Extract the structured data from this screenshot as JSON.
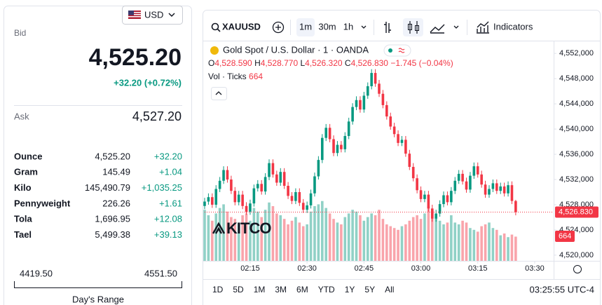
{
  "panel": {
    "currency": "USD",
    "bid_label": "Bid",
    "bid": "4,525.20",
    "change": "+32.20 (+0.72%)",
    "ask_label": "Ask",
    "ask": "4,527.20",
    "rows": [
      [
        "Ounce",
        "4,525.20",
        "+32.20"
      ],
      [
        "Gram",
        "145.49",
        "+1.04"
      ],
      [
        "Kilo",
        "145,490.79",
        "+1,035.25"
      ],
      [
        "Pennyweight",
        "226.26",
        "+1.61"
      ],
      [
        "Tola",
        "1,696.95",
        "+12.08"
      ],
      [
        "Tael",
        "5,499.38",
        "+39.13"
      ]
    ],
    "range_low": "4419.50",
    "range_high": "4551.50",
    "range_label": "Day's Range"
  },
  "toolbar": {
    "symbol": "XAUUSD",
    "intervals": [
      "1m",
      "30m",
      "1h"
    ],
    "indicators": "Indicators"
  },
  "footer": {
    "ranges": [
      "1D",
      "5D",
      "1M",
      "3M",
      "6M",
      "YTD",
      "1Y",
      "5Y",
      "All"
    ],
    "clock": "03:25:55 UTC-4"
  },
  "chart_data": {
    "type": "candlestick",
    "title": "Gold Spot / U.S. Dollar · 1 · OANDA",
    "ohlc_letters": [
      "O",
      "H",
      "L",
      "C"
    ],
    "ohlc_values": [
      "4,528.590",
      "4,528.770",
      "4,526.320",
      "4,526.830"
    ],
    "change": "−1.745 (−0.04%)",
    "volume_title": "Vol · Ticks",
    "volume_label": "664",
    "price_label": "4,526.830",
    "watermark": "KITCO",
    "up_color": "#089981",
    "down_color": "#f23645",
    "x": [
      "02:03",
      "02:04",
      "02:05",
      "02:06",
      "02:07",
      "02:08",
      "02:09",
      "02:10",
      "02:11",
      "02:12",
      "02:13",
      "02:14",
      "02:15",
      "02:16",
      "02:17",
      "02:18",
      "02:19",
      "02:20",
      "02:21",
      "02:22",
      "02:23",
      "02:24",
      "02:25",
      "02:26",
      "02:27",
      "02:28",
      "02:29",
      "02:30",
      "02:31",
      "02:32",
      "02:33",
      "02:34",
      "02:35",
      "02:36",
      "02:37",
      "02:38",
      "02:39",
      "02:40",
      "02:41",
      "02:42",
      "02:43",
      "02:44",
      "02:45",
      "02:46",
      "02:47",
      "02:48",
      "02:49",
      "02:50",
      "02:51",
      "02:52",
      "02:53",
      "02:54",
      "02:55",
      "02:56",
      "02:57",
      "02:58",
      "02:59",
      "03:00",
      "03:01",
      "03:02",
      "03:03",
      "03:04",
      "03:05",
      "03:06",
      "03:07",
      "03:08",
      "03:09",
      "03:10",
      "03:11",
      "03:12",
      "03:13",
      "03:14",
      "03:15",
      "03:16",
      "03:17",
      "03:18",
      "03:19",
      "03:20",
      "03:21",
      "03:22",
      "03:23",
      "03:24",
      "03:25"
    ],
    "open": [
      4527.8,
      4528.5,
      4529.2,
      4528.0,
      4530.5,
      4531.8,
      4533.5,
      4532.0,
      4530.2,
      4528.4,
      4529.6,
      4527.8,
      4526.9,
      4528.2,
      4530.6,
      4531.3,
      4530.1,
      4532.4,
      4534.6,
      4532.8,
      4531.5,
      4533.2,
      4531.0,
      4529.4,
      4528.6,
      4530.0,
      4528.3,
      4527.2,
      4527.9,
      4529.8,
      4532.5,
      4535.1,
      4538.6,
      4540.2,
      4538.4,
      4536.2,
      4537.5,
      4536.8,
      4538.9,
      4541.2,
      4543.5,
      4544.6,
      4543.1,
      4545.3,
      4546.8,
      4548.9,
      4547.2,
      4545.6,
      4543.8,
      4542.0,
      4540.4,
      4539.2,
      4537.8,
      4538.3,
      4536.1,
      4534.0,
      4532.2,
      4530.3,
      4528.9,
      4529.6,
      4527.4,
      4525.8,
      4526.6,
      4528.1,
      4529.5,
      4528.4,
      4530.2,
      4531.8,
      4532.9,
      4531.7,
      4530.4,
      4532.6,
      4534.1,
      4532.8,
      4531.2,
      4529.6,
      4530.5,
      4531.4,
      4530.2,
      4530.9,
      4529.8,
      4531.1,
      4528.59
    ],
    "high": [
      4529.1,
      4529.8,
      4529.8,
      4531.1,
      4532.4,
      4534.1,
      4534.1,
      4532.6,
      4530.8,
      4530.2,
      4530.2,
      4528.4,
      4528.8,
      4531.2,
      4531.9,
      4531.9,
      4533.0,
      4535.2,
      4535.2,
      4533.4,
      4533.8,
      4533.8,
      4531.6,
      4530.0,
      4530.6,
      4530.6,
      4528.9,
      4528.5,
      4530.4,
      4533.1,
      4535.7,
      4539.2,
      4540.8,
      4540.8,
      4539.0,
      4538.1,
      4538.1,
      4539.5,
      4541.8,
      4544.1,
      4545.2,
      4545.2,
      4545.9,
      4547.4,
      4549.5,
      4549.5,
      4547.8,
      4546.2,
      4544.4,
      4542.6,
      4541.0,
      4539.8,
      4538.9,
      4538.9,
      4536.7,
      4534.6,
      4532.8,
      4530.9,
      4530.2,
      4530.2,
      4528.0,
      4527.2,
      4528.7,
      4530.1,
      4530.1,
      4530.8,
      4532.4,
      4533.5,
      4533.5,
      4532.3,
      4533.2,
      4534.7,
      4534.7,
      4533.4,
      4531.8,
      4531.1,
      4532.0,
      4532.0,
      4531.5,
      4531.5,
      4531.7,
      4531.7,
      4528.77
    ],
    "low": [
      4527.3,
      4528.0,
      4527.5,
      4527.5,
      4530.0,
      4531.3,
      4531.5,
      4529.7,
      4527.9,
      4527.9,
      4527.3,
      4526.4,
      4526.4,
      4527.7,
      4530.1,
      4529.6,
      4529.6,
      4531.9,
      4532.3,
      4531.0,
      4531.0,
      4530.5,
      4528.9,
      4528.1,
      4528.1,
      4527.8,
      4526.7,
      4526.7,
      4527.4,
      4529.3,
      4532.0,
      4534.6,
      4538.1,
      4537.9,
      4535.7,
      4535.7,
      4536.3,
      4536.3,
      4538.4,
      4540.7,
      4543.0,
      4542.6,
      4542.6,
      4544.8,
      4546.3,
      4546.7,
      4545.1,
      4543.3,
      4541.5,
      4539.9,
      4538.7,
      4537.3,
      4537.3,
      4535.6,
      4533.5,
      4531.7,
      4529.8,
      4528.4,
      4528.4,
      4526.9,
      4525.3,
      4525.3,
      4526.1,
      4527.6,
      4527.9,
      4527.9,
      4529.7,
      4531.3,
      4531.2,
      4529.9,
      4529.9,
      4532.1,
      4532.3,
      4530.7,
      4529.1,
      4529.1,
      4530.0,
      4529.7,
      4529.7,
      4529.3,
      4529.3,
      4528.1,
      4526.32
    ],
    "close": [
      4528.5,
      4529.2,
      4528.0,
      4530.5,
      4531.8,
      4533.5,
      4532.0,
      4530.2,
      4528.4,
      4529.6,
      4527.8,
      4526.9,
      4528.2,
      4530.6,
      4531.3,
      4530.1,
      4532.4,
      4534.6,
      4532.8,
      4531.5,
      4533.2,
      4531.0,
      4529.4,
      4528.6,
      4530.0,
      4528.3,
      4527.2,
      4527.9,
      4529.8,
      4532.5,
      4535.1,
      4538.6,
      4540.2,
      4538.4,
      4536.2,
      4537.5,
      4536.8,
      4538.9,
      4541.2,
      4543.5,
      4544.6,
      4543.1,
      4545.3,
      4546.8,
      4548.9,
      4547.2,
      4545.6,
      4543.8,
      4542.0,
      4540.4,
      4539.2,
      4537.8,
      4538.3,
      4536.1,
      4534.0,
      4532.2,
      4530.3,
      4528.9,
      4529.6,
      4527.4,
      4525.8,
      4526.6,
      4528.1,
      4529.5,
      4528.4,
      4530.2,
      4531.8,
      4532.9,
      4531.7,
      4530.4,
      4532.6,
      4534.1,
      4532.8,
      4531.2,
      4529.6,
      4530.5,
      4531.4,
      4530.2,
      4530.9,
      4529.8,
      4531.1,
      4528.6,
      4526.83
    ],
    "volume": [
      1400,
      1250,
      1100,
      1300,
      1450,
      1550,
      1350,
      1200,
      1150,
      1050,
      1250,
      1300,
      1100,
      1450,
      1350,
      1200,
      1400,
      1600,
      1500,
      1300,
      1250,
      1150,
      1000,
      1100,
      1200,
      1050,
      950,
      1000,
      1350,
      1500,
      1550,
      1640,
      1450,
      1300,
      1150,
      1050,
      1000,
      1200,
      1300,
      1400,
      1350,
      1250,
      1100,
      1200,
      1300,
      1250,
      1400,
      1150,
      1000,
      950,
      900,
      850,
      950,
      1000,
      1100,
      1200,
      1250,
      1150,
      1300,
      1500,
      1400,
      1200,
      1100,
      1000,
      1050,
      1250,
      1050,
      1000,
      1100,
      1050,
      900,
      850,
      800,
      950,
      1000,
      1050,
      900,
      850,
      700,
      750,
      650,
      720,
      664
    ],
    "xlim": [
      "02:03",
      "03:35"
    ],
    "xticks": [
      "02:15",
      "02:30",
      "02:45",
      "03:00",
      "03:15",
      "03:30"
    ],
    "ylim": [
      4519.1,
      4553.8
    ],
    "yticks": [
      {
        "value": 4520,
        "label": "4,520,000"
      },
      {
        "value": 4524,
        "label": "4,524,000"
      },
      {
        "value": 4528,
        "label": "4,528,000"
      },
      {
        "value": 4532,
        "label": "4,532,000"
      },
      {
        "value": 4536,
        "label": "4,536,000"
      },
      {
        "value": 4540,
        "label": "4,540,000"
      },
      {
        "value": 4544,
        "label": "4,544,000"
      },
      {
        "value": 4548,
        "label": "4,548,000"
      },
      {
        "value": 4552,
        "label": "4,552,000"
      }
    ]
  }
}
